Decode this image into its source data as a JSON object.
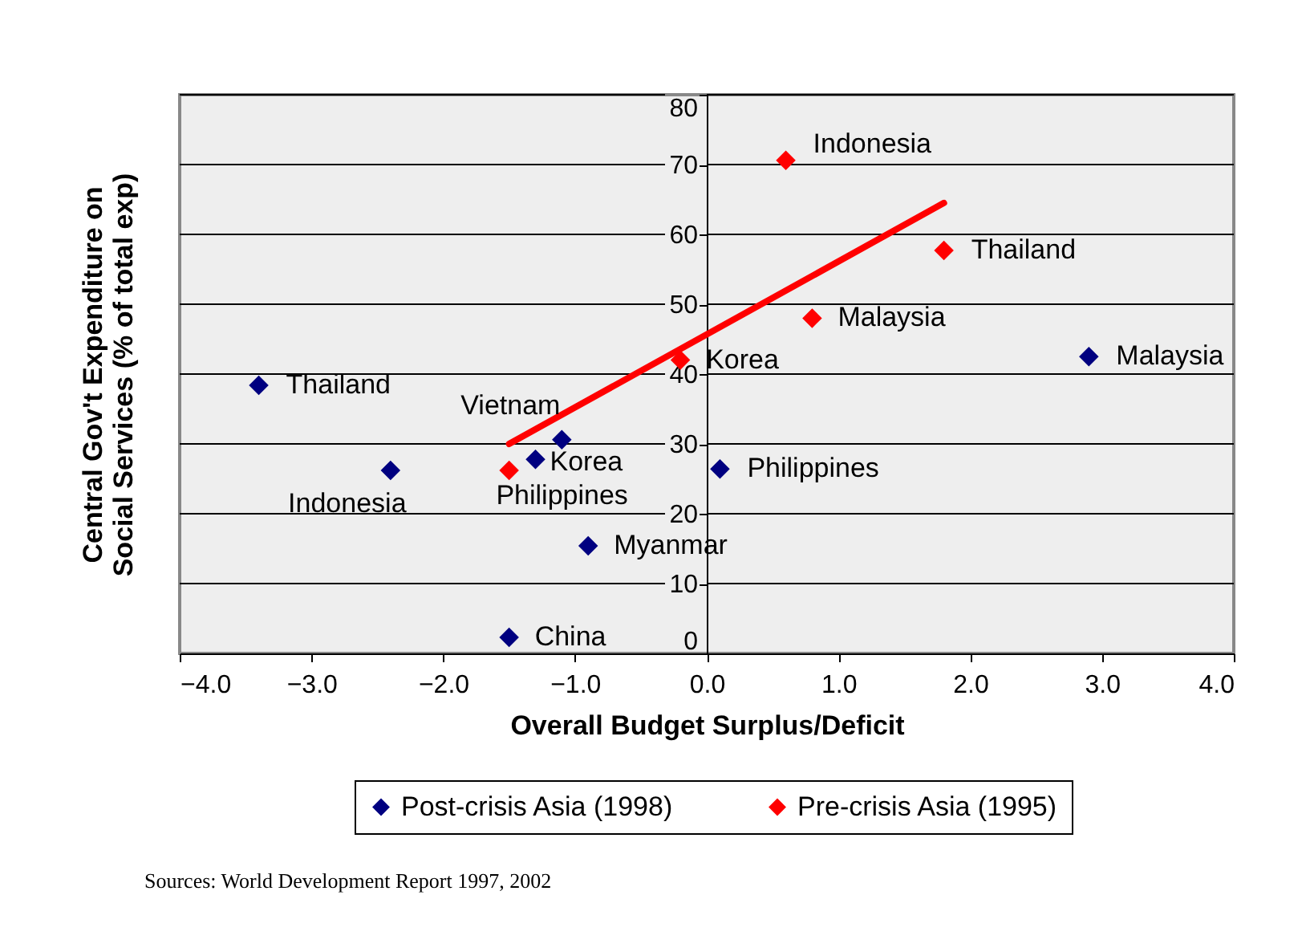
{
  "chart_data": {
    "type": "scatter",
    "xlabel": "Overall Budget Surplus/Deficit",
    "ylabel": "Central Gov't Expenditure on Social Services (% of total exp)",
    "xlim": [
      -4,
      4
    ],
    "xticks": [
      {
        "value": -4,
        "label": "−4.0"
      },
      {
        "value": -3,
        "label": "−3.0"
      },
      {
        "value": -2,
        "label": "−2.0"
      },
      {
        "value": -1,
        "label": "−1.0"
      },
      {
        "value": 0,
        "label": "0.0"
      },
      {
        "value": 1,
        "label": "1.0"
      },
      {
        "value": 2,
        "label": "2.0"
      },
      {
        "value": 3,
        "label": "3.0"
      },
      {
        "value": 4,
        "label": "4.0"
      }
    ],
    "ylim": [
      0,
      80
    ],
    "yticks": [
      0,
      10,
      20,
      30,
      40,
      50,
      60,
      70,
      80
    ],
    "grid": "y",
    "legend": "bottom",
    "marker": "diamond",
    "series": [
      {
        "name": "Post-crisis Asia (1998)",
        "color": "#000080",
        "x": [
          -3.4,
          -2.4,
          -1.3,
          -1.1,
          -0.9,
          -1.5,
          0.1,
          2.9
        ],
        "values": [
          38.4,
          26.2,
          27.8,
          30.6,
          15.4,
          2.3,
          26.4,
          42.5
        ]
      },
      {
        "name": "Pre-crisis Asia (1995)",
        "color": "#ff0000",
        "x": [
          -1.5,
          -0.2,
          0.6,
          0.8,
          1.8
        ],
        "values": [
          26.2,
          42,
          70.6,
          48,
          57.7
        ]
      },
      {
        "type": "line",
        "marker": "none",
        "color": "#ff0000",
        "x": [
          -1.5,
          1.8
        ],
        "values": [
          30,
          64.5
        ]
      }
    ],
    "annotations": [
      {
        "text": "Thailand",
        "x": -3.4,
        "y": 38.4
      },
      {
        "text": "Indonesia",
        "x": -2.4,
        "y": 26.2
      },
      {
        "text": "Korea",
        "x": -1.3,
        "y": 27.8
      },
      {
        "text": "Vietnam",
        "x": -1.1,
        "y": 30.6
      },
      {
        "text": "Myanmar",
        "x": -0.9,
        "y": 15.4
      },
      {
        "text": "China",
        "x": -1.5,
        "y": 2.3
      },
      {
        "text": "Philippines",
        "x": 0.1,
        "y": 26.4
      },
      {
        "text": "Malaysia",
        "x": 2.9,
        "y": 42.5
      },
      {
        "text": "Philippines",
        "x": -1.5,
        "y": 26.2
      },
      {
        "text": "Korea",
        "x": -0.2,
        "y": 42
      },
      {
        "text": "Indonesia",
        "x": 0.6,
        "y": 70.6
      },
      {
        "text": "Malaysia",
        "x": 0.8,
        "y": 48
      },
      {
        "text": "Thailand",
        "x": 1.8,
        "y": 57.7
      },
      "Sources: World Development Report 1997, 2002"
    ]
  }
}
